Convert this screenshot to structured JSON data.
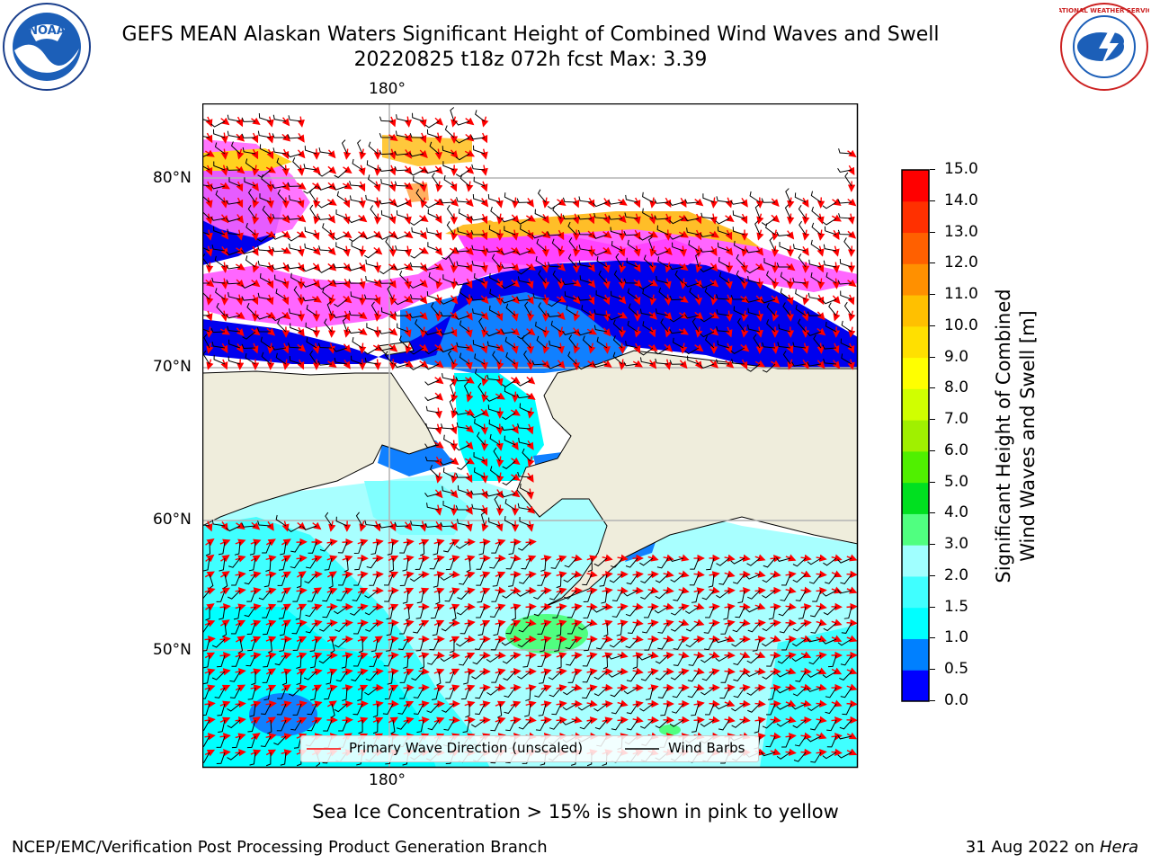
{
  "title_line1": "GEFS MEAN Alaskan Waters Significant Height of Combined Wind Waves and Swell",
  "title_line2": "20220825 t18z 072h fcst   Max: 3.39",
  "logos": {
    "left": "NOAA",
    "right": "NATIONAL WEATHER SERVICE"
  },
  "map": {
    "top_lon_label": "180°",
    "bottom_lon_label": "180°",
    "lat_labels": [
      "80°N",
      "70°N",
      "60°N",
      "50°N"
    ]
  },
  "legend": {
    "wave_label": "Primary Wave Direction (unscaled)",
    "barb_label": "Wind Barbs"
  },
  "colorbar": {
    "ticks": [
      "15.0",
      "14.0",
      "13.0",
      "12.0",
      "11.0",
      "10.0",
      "9.0",
      "8.0",
      "7.0",
      "6.0",
      "5.0",
      "4.0",
      "3.0",
      "2.0",
      "1.5",
      "1.0",
      "0.5",
      "0.0"
    ],
    "colors": [
      "#0000ff",
      "#0080ff",
      "#00ffff",
      "#40ffff",
      "#a0ffff",
      "#50ff80",
      "#00e020",
      "#50f000",
      "#a0f000",
      "#d0ff00",
      "#ffff00",
      "#ffe000",
      "#ffc000",
      "#ff9000",
      "#ff6000",
      "#ff3000",
      "#ff0000"
    ],
    "label_line1": "Significant Height of Combined",
    "label_line2": "Wind Waves and Swell [m]"
  },
  "note": "Sea Ice Concentration > 15% is shown in pink to yellow",
  "footer_left": "NCEP/EMC/Verification Post Processing Product Generation Branch",
  "footer_date": "31 Aug 2022 on ",
  "footer_host": "Hera",
  "colors": {
    "land": "#efeddc",
    "ice_pink": "#ff66ff",
    "ice_yellow": "#ffd21e",
    "arrow": "#ff0000"
  }
}
